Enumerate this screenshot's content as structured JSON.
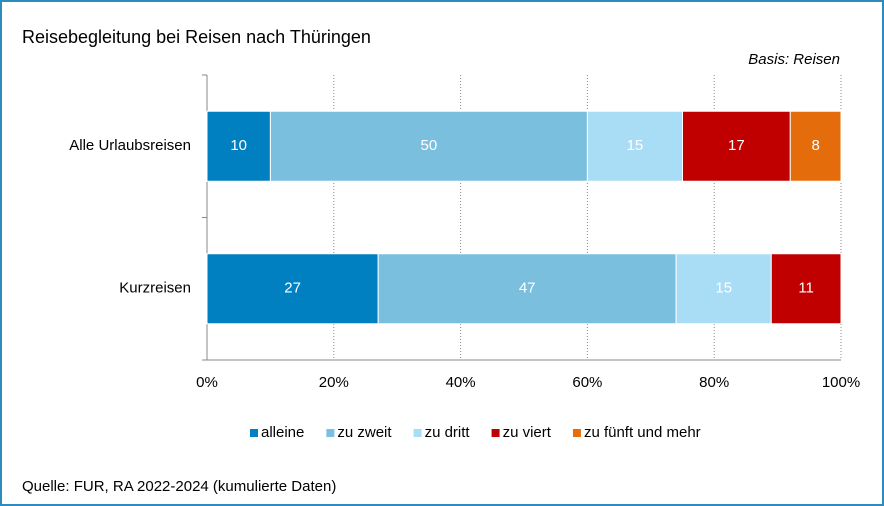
{
  "chart_data": {
    "type": "stacked_barh",
    "title": "Reisebegleitung bei Reisen nach Thüringen",
    "subtitle": "Basis: Reisen",
    "source": "Quelle: FUR, RA 2022-2024 (kumulierte Daten)",
    "categories": [
      "Alle Urlaubsreisen",
      "Kurzreisen"
    ],
    "series": [
      {
        "name": "alleine",
        "color": "#0080c0",
        "values": [
          10,
          27
        ]
      },
      {
        "name": "zu zweit",
        "color": "#7bbfdf",
        "values": [
          50,
          47
        ]
      },
      {
        "name": "zu dritt",
        "color": "#a9dcf5",
        "values": [
          15,
          15
        ]
      },
      {
        "name": "zu viert",
        "color": "#c00000",
        "values": [
          17,
          11
        ]
      },
      {
        "name": "zu fünft und mehr",
        "color": "#e46c0a",
        "values": [
          8,
          null
        ]
      }
    ],
    "xlim": [
      0,
      100
    ],
    "xticks": [
      {
        "value": 0,
        "label": "0%"
      },
      {
        "value": 20,
        "label": "20%"
      },
      {
        "value": 40,
        "label": "40%"
      },
      {
        "value": 60,
        "label": "60%"
      },
      {
        "value": 80,
        "label": "80%"
      },
      {
        "value": 100,
        "label": "100%"
      }
    ],
    "grid": true,
    "legend": "bottom"
  }
}
